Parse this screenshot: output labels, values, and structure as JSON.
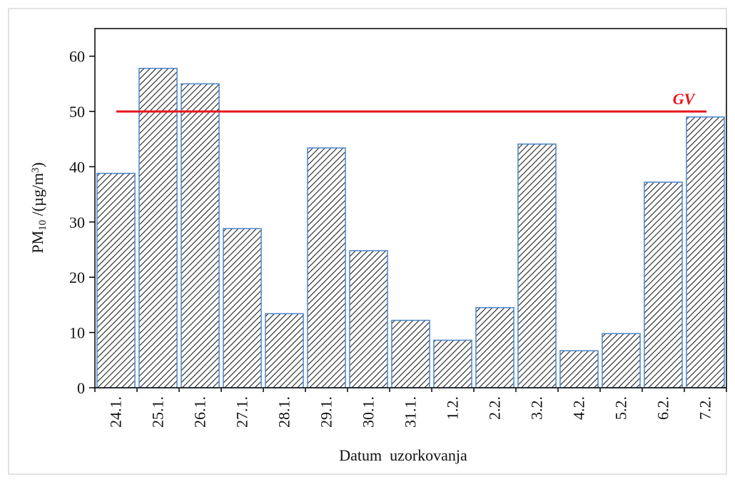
{
  "chart_data": {
    "type": "bar",
    "categories": [
      "24.1.",
      "25.1.",
      "26.1.",
      "27.1.",
      "28.1.",
      "29.1.",
      "30.1.",
      "31.1.",
      "1.2.",
      "2.2.",
      "3.2.",
      "4.2.",
      "5.2.",
      "6.2.",
      "7.2."
    ],
    "values": [
      38.8,
      57.8,
      55,
      28.8,
      13.4,
      43.4,
      24.8,
      12.2,
      8.6,
      14.5,
      44.1,
      6.7,
      9.8,
      37.2,
      49
    ],
    "color": "#4a86c8",
    "ylim": [
      0,
      65
    ],
    "yticks": [
      0,
      10,
      20,
      30,
      40,
      50,
      60
    ],
    "x_label": "Datum  uzorkovanja",
    "y_label_parts": [
      "PM",
      "10",
      " /(µg/m",
      "3",
      ")"
    ],
    "reference_line": {
      "value": 50,
      "label": "GV",
      "color": "#e8151b"
    }
  }
}
